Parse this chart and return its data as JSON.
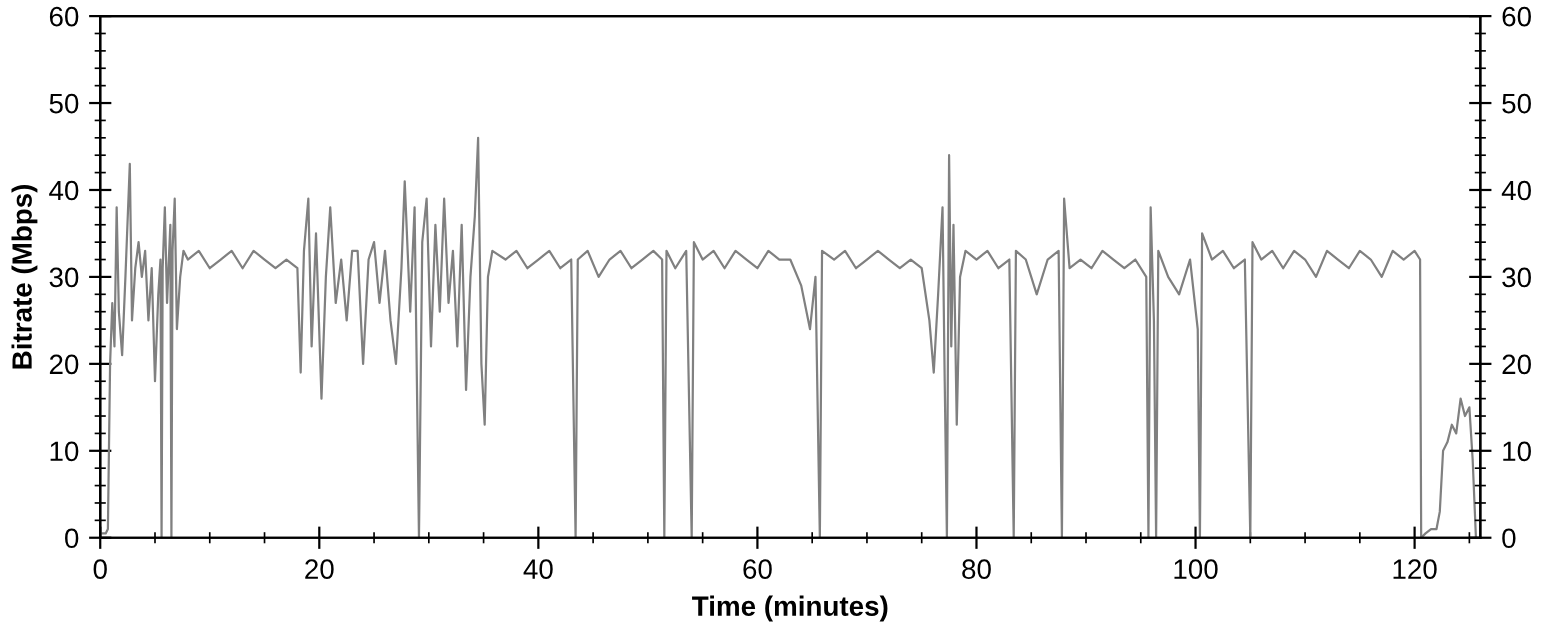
{
  "chart_data": {
    "type": "line",
    "xlabel": "Time (minutes)",
    "ylabel": "Bitrate (Mbps)",
    "xlim": [
      0,
      126
    ],
    "xticks": [
      0,
      20,
      40,
      60,
      80,
      100,
      120
    ],
    "ylim": [
      0,
      60
    ],
    "yticks": [
      0,
      10,
      20,
      30,
      40,
      50,
      60
    ],
    "y2lim": [
      0,
      60
    ],
    "y2ticks": [
      0,
      10,
      20,
      30,
      40,
      50,
      60
    ],
    "grid": false,
    "legend": false,
    "marker": "none",
    "line_style": "solid",
    "series": [
      {
        "color": "#808080",
        "x": [
          0,
          0.5,
          0.7,
          0.9,
          1.1,
          1.3,
          1.5,
          1.7,
          2.0,
          2.3,
          2.7,
          2.9,
          3.2,
          3.5,
          3.8,
          4.1,
          4.4,
          4.7,
          5.0,
          5.3,
          5.5,
          5.6,
          5.7,
          5.9,
          6.1,
          6.4,
          6.5,
          6.6,
          6.8,
          7.0,
          7.3,
          7.6,
          8,
          9,
          10,
          11,
          12,
          13,
          14,
          15,
          16,
          17,
          18,
          18.3,
          18.6,
          19,
          19.3,
          19.7,
          20.2,
          20.6,
          21,
          21.5,
          22,
          22.5,
          23,
          23.5,
          24,
          24.5,
          25,
          25.5,
          26,
          26.5,
          27,
          27.5,
          27.8,
          28.3,
          28.7,
          29.1,
          29.4,
          29.8,
          30.2,
          30.6,
          31,
          31.4,
          31.8,
          32.2,
          32.6,
          33,
          33.4,
          33.8,
          34.2,
          34.5,
          34.8,
          35.1,
          35.4,
          35.8,
          37,
          38,
          39,
          40,
          41,
          42,
          43,
          43.4,
          43.6,
          44.5,
          45.5,
          46.5,
          47.5,
          48.5,
          49.5,
          50.5,
          51.3,
          51.5,
          51.7,
          52.5,
          53.5,
          54,
          54.2,
          55,
          56,
          57,
          58,
          59,
          60,
          61,
          62,
          63,
          64,
          64.8,
          65.3,
          65.7,
          65.9,
          67,
          68,
          69,
          70,
          71,
          72,
          73,
          74,
          75,
          75.7,
          76.1,
          76.5,
          76.9,
          77.1,
          77.3,
          77.5,
          77.7,
          77.9,
          78.2,
          78.5,
          79,
          80,
          81,
          82,
          83,
          83.4,
          83.6,
          84.5,
          85.5,
          86.5,
          87.5,
          87.8,
          88,
          88.5,
          89.5,
          90.5,
          91.5,
          92.5,
          93.5,
          94.5,
          95.5,
          95.7,
          95.9,
          96.2,
          96.4,
          96.6,
          97.5,
          98.5,
          99.5,
          100.2,
          100.4,
          100.6,
          101.5,
          102.5,
          103.5,
          104.5,
          105,
          105.2,
          106,
          107,
          108,
          109,
          110,
          111,
          112,
          113,
          114,
          115,
          116,
          117,
          118,
          119,
          120,
          120.5,
          120.6,
          121,
          121.5,
          122,
          122.3,
          122.6,
          123,
          123.4,
          123.8,
          124.2,
          124.6,
          125,
          125.3,
          125.6
        ],
        "values": [
          0.5,
          0.5,
          1,
          20,
          27,
          22,
          38,
          26,
          21,
          30,
          43,
          25,
          31,
          34,
          30,
          33,
          25,
          31,
          18,
          28,
          32,
          0,
          31,
          38,
          27,
          36,
          0,
          33,
          39,
          24,
          30,
          33,
          32,
          33,
          31,
          32,
          33,
          31,
          33,
          32,
          31,
          32,
          31,
          19,
          33,
          39,
          22,
          35,
          16,
          30,
          38,
          27,
          32,
          25,
          33,
          33,
          20,
          32,
          34,
          27,
          33,
          25,
          20,
          31,
          41,
          26,
          38,
          0,
          34,
          39,
          22,
          36,
          26,
          39,
          27,
          33,
          22,
          36,
          17,
          30,
          37,
          46,
          20,
          13,
          30,
          33,
          32,
          33,
          31,
          32,
          33,
          31,
          32,
          0,
          32,
          33,
          30,
          32,
          33,
          31,
          32,
          33,
          32,
          0,
          33,
          31,
          33,
          0,
          34,
          32,
          33,
          31,
          33,
          32,
          31,
          33,
          32,
          32,
          29,
          24,
          30,
          0,
          33,
          32,
          33,
          31,
          32,
          33,
          32,
          31,
          32,
          31,
          25,
          19,
          28,
          38,
          18,
          0,
          44,
          22,
          36,
          13,
          30,
          33,
          32,
          33,
          31,
          32,
          0,
          33,
          32,
          28,
          32,
          33,
          0,
          39,
          31,
          32,
          31,
          33,
          32,
          31,
          32,
          30,
          0,
          38,
          25,
          0,
          33,
          30,
          28,
          32,
          24,
          0,
          35,
          32,
          33,
          31,
          32,
          0,
          34,
          32,
          33,
          31,
          33,
          32,
          30,
          33,
          32,
          31,
          33,
          32,
          30,
          33,
          32,
          33,
          32,
          0,
          0.5,
          1,
          1,
          3,
          10,
          11,
          13,
          12,
          16,
          14,
          15,
          9,
          0
        ]
      }
    ]
  }
}
